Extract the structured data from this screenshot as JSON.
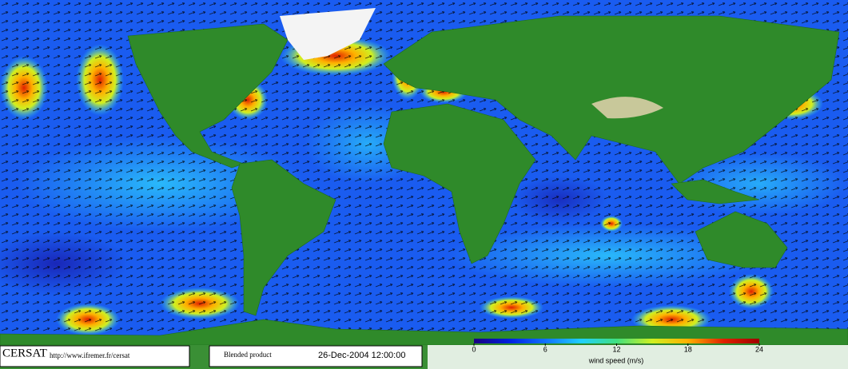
{
  "footer": {
    "logo": "CERSAT",
    "url": "http://www.ifremer.fr/cersat",
    "product": "Blended product",
    "date": "26-Dec-2004 12:00:00"
  },
  "colorbar": {
    "label": "wind speed (m/s)",
    "lim": [
      0,
      24
    ],
    "ticks": [
      0,
      6,
      12,
      18,
      24
    ],
    "colors": [
      "#1a0080",
      "#0020e0",
      "#1070ff",
      "#20d0ff",
      "#40e080",
      "#d0f020",
      "#ffb000",
      "#e02000",
      "#a00000"
    ]
  }
}
